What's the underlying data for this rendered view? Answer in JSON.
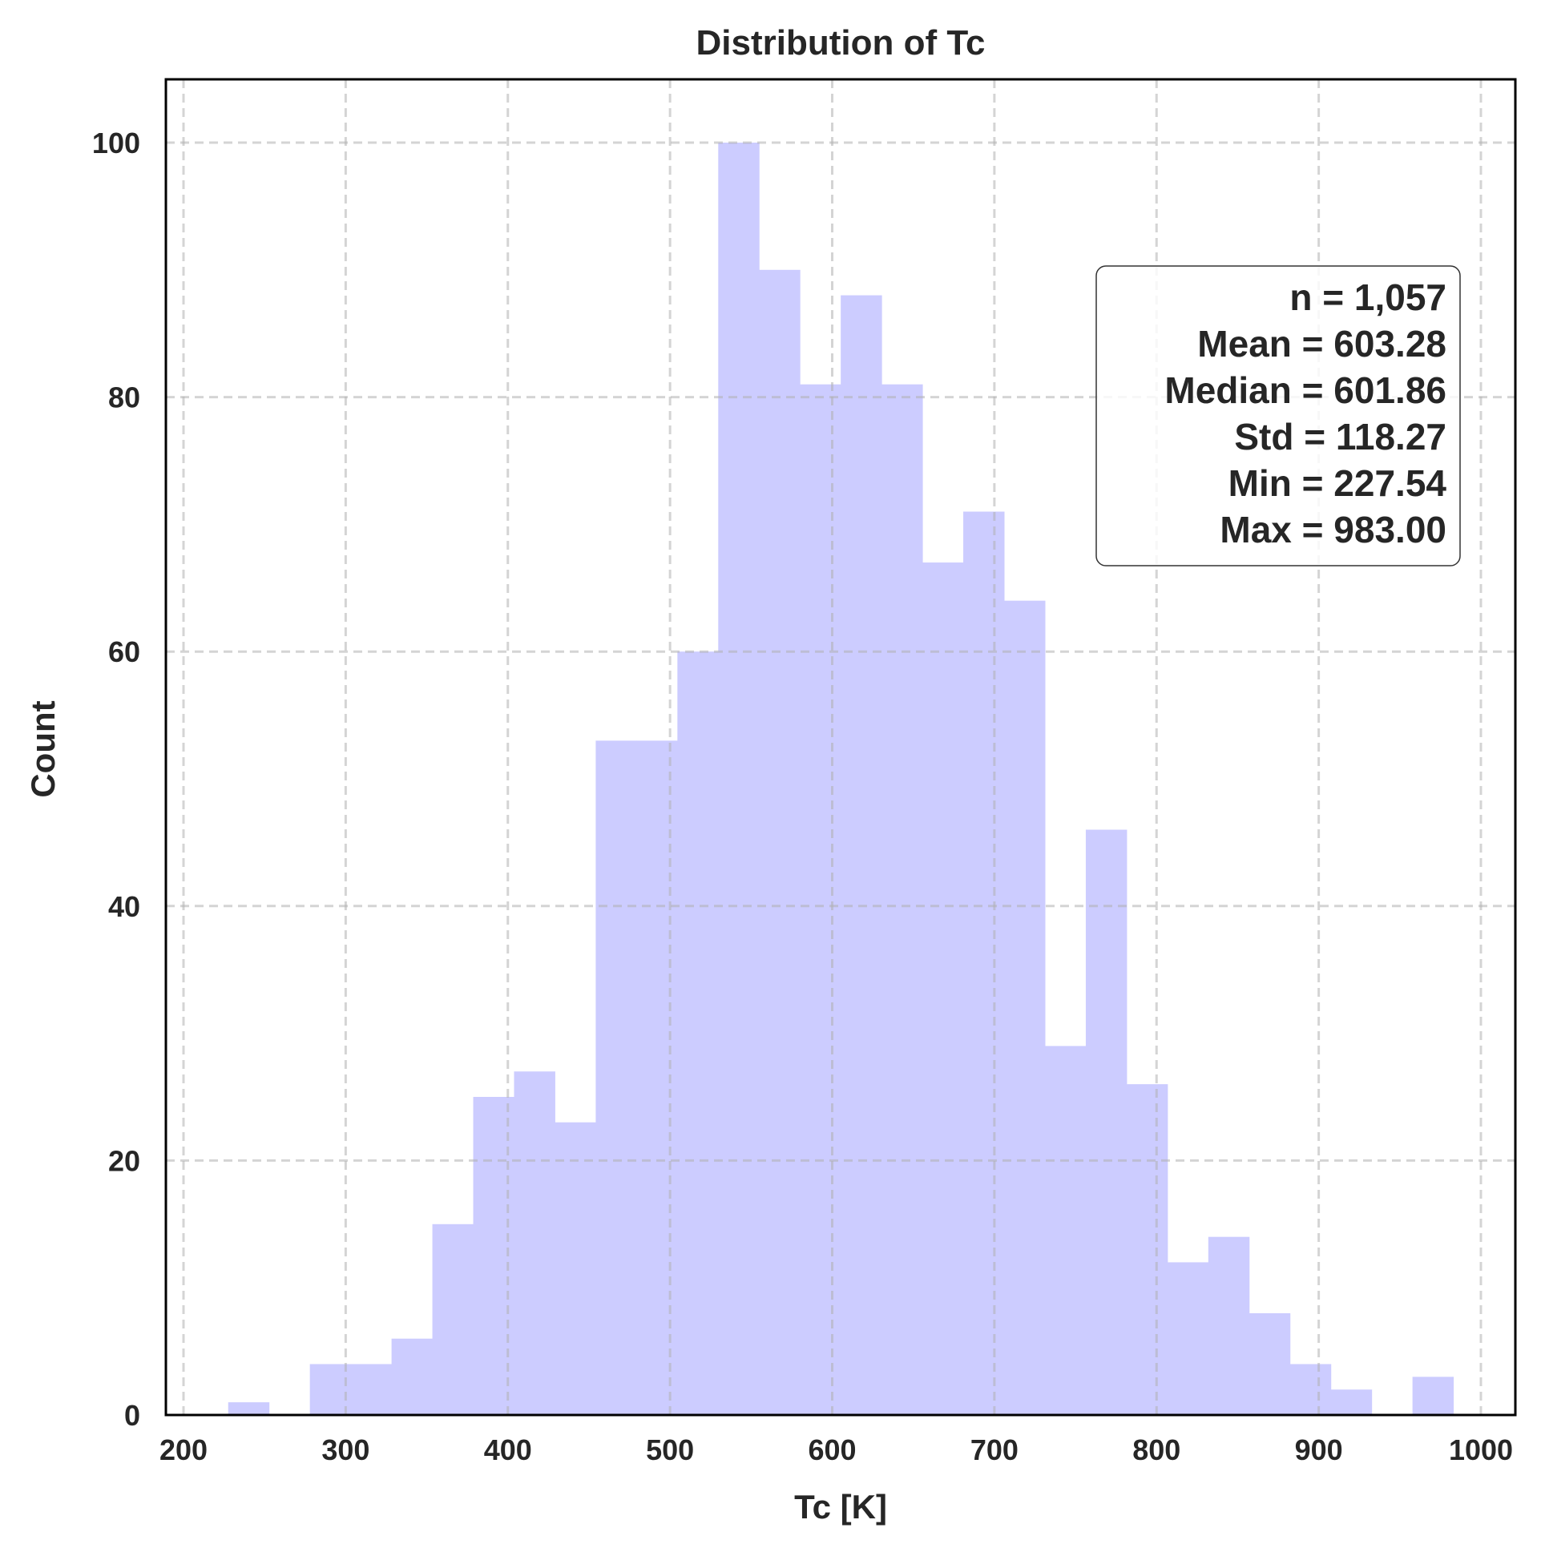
{
  "chart_data": {
    "type": "bar",
    "title": "Distribution of Tc",
    "xlabel": "Tc [K]",
    "ylabel": "Count",
    "xlim": [
      200,
      1000
    ],
    "ylim": [
      0,
      105
    ],
    "xticks": [
      "200",
      "300",
      "400",
      "500",
      "600",
      "700",
      "800",
      "900",
      "1000"
    ],
    "yticks": [
      "0",
      "20",
      "40",
      "60",
      "80",
      "100"
    ],
    "grid": true,
    "bar_color": "#ccccff",
    "bin_start": 227.54,
    "bin_end": 983.0,
    "counts": [
      1,
      0,
      4,
      4,
      6,
      15,
      25,
      27,
      23,
      53,
      53,
      60,
      100,
      90,
      81,
      88,
      81,
      67,
      71,
      64,
      29,
      46,
      26,
      12,
      14,
      8,
      4,
      2,
      0,
      3
    ],
    "stats": [
      "n = 1,057",
      "Mean = 603.28",
      "Median = 601.86",
      "Std = 118.27",
      "Min = 227.54",
      "Max = 983.00"
    ]
  }
}
